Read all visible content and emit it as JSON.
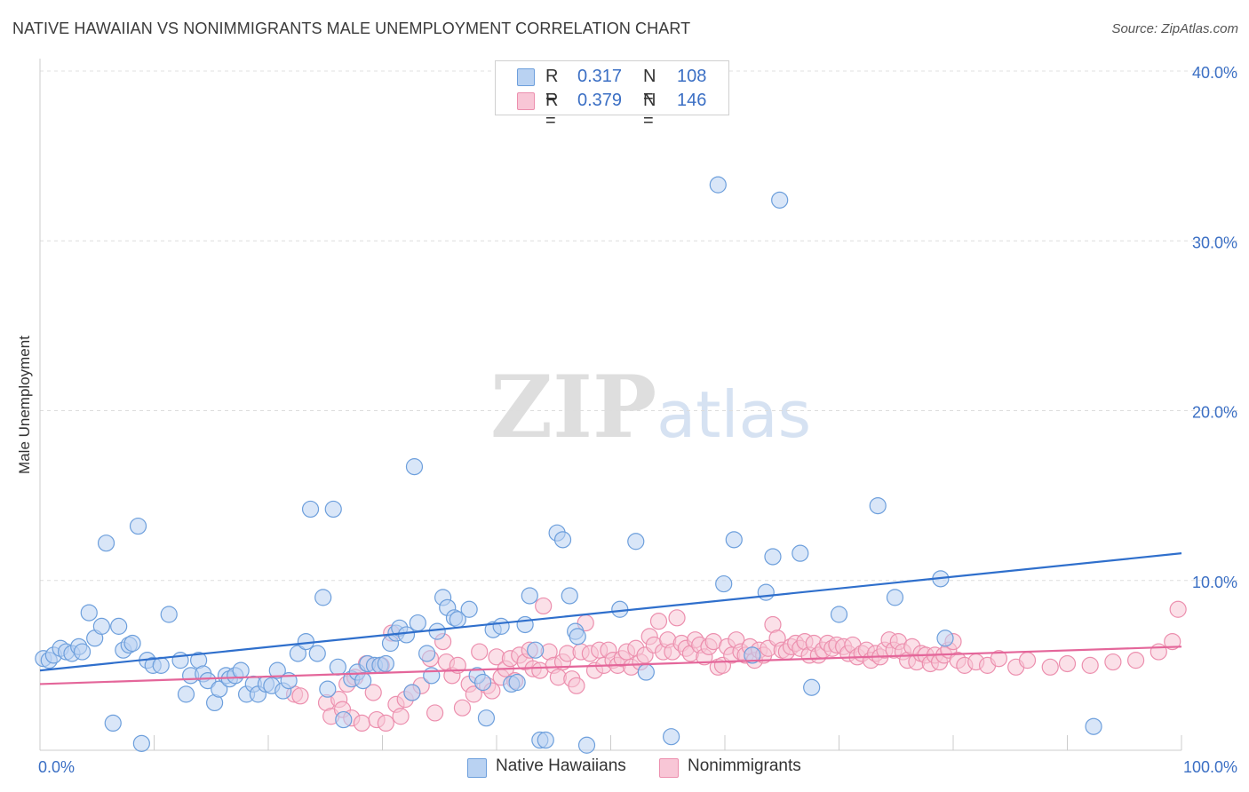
{
  "title": "NATIVE HAWAIIAN VS NONIMMIGRANTS MALE UNEMPLOYMENT CORRELATION CHART",
  "source": "Source: ZipAtlas.com",
  "watermark": {
    "zip": "ZIP",
    "atlas": "atlas"
  },
  "legend_top": [
    {
      "r_label": "R =",
      "r_value": "0.317",
      "n_label": "N =",
      "n_value": "108"
    },
    {
      "r_label": "R =",
      "r_value": "0.379",
      "n_label": "N =",
      "n_value": "146"
    }
  ],
  "legend_bottom": [
    "Native Hawaiians",
    "Nonimmigrants"
  ],
  "chart_data": {
    "type": "scatter",
    "ylabel": "Male Unemployment",
    "xlim": [
      0,
      100
    ],
    "ylim": [
      0,
      40
    ],
    "x_tick_labels": [
      {
        "value": 0,
        "label": "0.0%"
      },
      {
        "value": 100,
        "label": "100.0%"
      }
    ],
    "y_tick_labels": [
      {
        "value": 10,
        "label": "10.0%"
      },
      {
        "value": 20,
        "label": "20.0%"
      },
      {
        "value": 30,
        "label": "30.0%"
      },
      {
        "value": 40,
        "label": "40.0%"
      }
    ],
    "grid": true,
    "colors": {
      "native_fill": "#b9d2f2",
      "native_stroke": "#6d9fdc",
      "native_line": "#2f6fcc",
      "nonimm_fill": "#f8c6d6",
      "nonimm_stroke": "#ec8fae",
      "nonimm_line": "#e4669a"
    },
    "series": [
      {
        "name": "Native Hawaiians",
        "trend": {
          "x": [
            0,
            100
          ],
          "y": [
            4.7,
            11.6
          ]
        },
        "points": [
          [
            0.3,
            5.4
          ],
          [
            0.8,
            5.3
          ],
          [
            1.2,
            5.6
          ],
          [
            1.8,
            6.0
          ],
          [
            2.3,
            5.8
          ],
          [
            2.8,
            5.7
          ],
          [
            3.4,
            6.1
          ],
          [
            3.7,
            5.8
          ],
          [
            4.3,
            8.1
          ],
          [
            4.8,
            6.6
          ],
          [
            5.4,
            7.3
          ],
          [
            5.8,
            12.2
          ],
          [
            6.4,
            1.6
          ],
          [
            6.9,
            7.3
          ],
          [
            7.3,
            5.9
          ],
          [
            7.8,
            6.2
          ],
          [
            8.1,
            6.3
          ],
          [
            8.6,
            13.2
          ],
          [
            8.9,
            0.4
          ],
          [
            9.4,
            5.3
          ],
          [
            9.9,
            5.0
          ],
          [
            10.6,
            5.0
          ],
          [
            11.3,
            8.0
          ],
          [
            12.3,
            5.3
          ],
          [
            12.8,
            3.3
          ],
          [
            13.2,
            4.4
          ],
          [
            13.9,
            5.3
          ],
          [
            14.3,
            4.5
          ],
          [
            14.7,
            4.1
          ],
          [
            15.3,
            2.8
          ],
          [
            15.7,
            3.6
          ],
          [
            16.3,
            4.4
          ],
          [
            16.6,
            4.2
          ],
          [
            17.1,
            4.4
          ],
          [
            17.6,
            4.7
          ],
          [
            18.1,
            3.3
          ],
          [
            18.7,
            3.9
          ],
          [
            19.1,
            3.3
          ],
          [
            19.8,
            3.9
          ],
          [
            20.3,
            3.8
          ],
          [
            20.8,
            4.7
          ],
          [
            21.3,
            3.5
          ],
          [
            21.8,
            4.1
          ],
          [
            22.6,
            5.7
          ],
          [
            23.3,
            6.4
          ],
          [
            23.7,
            14.2
          ],
          [
            24.3,
            5.7
          ],
          [
            24.8,
            9.0
          ],
          [
            25.2,
            3.6
          ],
          [
            25.7,
            14.2
          ],
          [
            26.1,
            4.9
          ],
          [
            26.6,
            1.8
          ],
          [
            27.3,
            4.2
          ],
          [
            27.8,
            4.6
          ],
          [
            28.3,
            4.1
          ],
          [
            28.7,
            5.1
          ],
          [
            29.3,
            5.0
          ],
          [
            29.8,
            5.0
          ],
          [
            30.3,
            5.1
          ],
          [
            30.7,
            6.3
          ],
          [
            31.2,
            6.9
          ],
          [
            31.5,
            7.2
          ],
          [
            32.1,
            6.8
          ],
          [
            32.6,
            3.4
          ],
          [
            32.8,
            16.7
          ],
          [
            33.1,
            7.5
          ],
          [
            33.9,
            5.7
          ],
          [
            34.3,
            4.4
          ],
          [
            34.8,
            7.0
          ],
          [
            35.3,
            9.0
          ],
          [
            35.7,
            8.4
          ],
          [
            36.3,
            7.8
          ],
          [
            36.6,
            7.7
          ],
          [
            37.6,
            8.3
          ],
          [
            38.3,
            4.4
          ],
          [
            38.8,
            4.0
          ],
          [
            39.1,
            1.9
          ],
          [
            39.7,
            7.1
          ],
          [
            40.4,
            7.3
          ],
          [
            41.3,
            3.9
          ],
          [
            41.8,
            4.0
          ],
          [
            42.5,
            7.4
          ],
          [
            42.9,
            9.1
          ],
          [
            43.4,
            5.9
          ],
          [
            43.8,
            0.6
          ],
          [
            44.3,
            0.6
          ],
          [
            45.3,
            12.8
          ],
          [
            45.8,
            12.4
          ],
          [
            46.4,
            9.1
          ],
          [
            46.9,
            7.0
          ],
          [
            47.1,
            6.7
          ],
          [
            47.9,
            0.3
          ],
          [
            50.8,
            8.3
          ],
          [
            52.2,
            12.3
          ],
          [
            53.1,
            4.6
          ],
          [
            55.3,
            0.8
          ],
          [
            59.4,
            33.3
          ],
          [
            59.9,
            9.8
          ],
          [
            60.8,
            12.4
          ],
          [
            62.4,
            5.6
          ],
          [
            63.6,
            9.3
          ],
          [
            64.2,
            11.4
          ],
          [
            64.8,
            32.4
          ],
          [
            66.6,
            11.6
          ],
          [
            67.6,
            3.7
          ],
          [
            70.0,
            8.0
          ],
          [
            73.4,
            14.4
          ],
          [
            74.9,
            9.0
          ],
          [
            78.9,
            10.1
          ],
          [
            79.3,
            6.6
          ],
          [
            92.3,
            1.4
          ]
        ]
      },
      {
        "name": "Nonimmigrants",
        "trend": {
          "x": [
            0,
            100
          ],
          "y": [
            3.9,
            6.1
          ]
        },
        "points": [
          [
            22.3,
            3.3
          ],
          [
            22.8,
            3.2
          ],
          [
            25.1,
            2.8
          ],
          [
            25.5,
            2.0
          ],
          [
            26.2,
            3.0
          ],
          [
            26.5,
            2.4
          ],
          [
            26.9,
            3.9
          ],
          [
            27.3,
            1.9
          ],
          [
            27.6,
            4.3
          ],
          [
            28.2,
            1.6
          ],
          [
            28.6,
            5.1
          ],
          [
            29.2,
            3.4
          ],
          [
            29.5,
            1.8
          ],
          [
            29.9,
            5.0
          ],
          [
            30.3,
            1.6
          ],
          [
            30.8,
            6.9
          ],
          [
            31.2,
            2.7
          ],
          [
            31.6,
            2.0
          ],
          [
            32.0,
            3.0
          ],
          [
            32.6,
            3.4
          ],
          [
            33.4,
            3.8
          ],
          [
            34.2,
            5.4
          ],
          [
            34.6,
            2.2
          ],
          [
            35.3,
            6.4
          ],
          [
            35.6,
            5.2
          ],
          [
            36.1,
            4.4
          ],
          [
            36.6,
            5.0
          ],
          [
            37.0,
            2.5
          ],
          [
            37.6,
            3.9
          ],
          [
            38.0,
            3.3
          ],
          [
            38.5,
            5.8
          ],
          [
            39.2,
            3.8
          ],
          [
            39.6,
            3.5
          ],
          [
            40.0,
            5.5
          ],
          [
            40.4,
            4.3
          ],
          [
            40.8,
            4.8
          ],
          [
            41.2,
            5.4
          ],
          [
            41.6,
            4.1
          ],
          [
            42.0,
            5.6
          ],
          [
            42.5,
            5.2
          ],
          [
            42.9,
            5.9
          ],
          [
            43.2,
            4.8
          ],
          [
            43.8,
            4.7
          ],
          [
            44.1,
            8.5
          ],
          [
            44.6,
            5.8
          ],
          [
            45.0,
            5.0
          ],
          [
            45.4,
            4.3
          ],
          [
            45.8,
            5.2
          ],
          [
            46.2,
            5.7
          ],
          [
            46.6,
            4.2
          ],
          [
            47.0,
            3.8
          ],
          [
            47.4,
            5.8
          ],
          [
            47.8,
            7.5
          ],
          [
            48.2,
            5.7
          ],
          [
            48.6,
            4.7
          ],
          [
            49.0,
            5.9
          ],
          [
            49.4,
            5.0
          ],
          [
            49.8,
            5.9
          ],
          [
            50.2,
            5.3
          ],
          [
            50.6,
            5.0
          ],
          [
            51.0,
            5.4
          ],
          [
            51.4,
            5.8
          ],
          [
            51.8,
            4.9
          ],
          [
            52.2,
            6.0
          ],
          [
            52.6,
            5.2
          ],
          [
            53.0,
            5.6
          ],
          [
            53.4,
            6.7
          ],
          [
            53.8,
            6.2
          ],
          [
            54.2,
            7.6
          ],
          [
            54.6,
            5.8
          ],
          [
            55.0,
            6.5
          ],
          [
            55.4,
            5.8
          ],
          [
            55.8,
            7.8
          ],
          [
            56.2,
            6.3
          ],
          [
            56.6,
            6.0
          ],
          [
            57.0,
            5.7
          ],
          [
            57.4,
            6.5
          ],
          [
            57.8,
            6.2
          ],
          [
            58.2,
            5.5
          ],
          [
            58.6,
            6.1
          ],
          [
            59.0,
            6.4
          ],
          [
            59.4,
            4.9
          ],
          [
            59.8,
            5.0
          ],
          [
            60.2,
            6.1
          ],
          [
            60.6,
            5.6
          ],
          [
            61.0,
            6.5
          ],
          [
            61.4,
            5.8
          ],
          [
            61.8,
            5.6
          ],
          [
            62.2,
            6.1
          ],
          [
            62.6,
            5.3
          ],
          [
            63.0,
            5.9
          ],
          [
            63.4,
            5.6
          ],
          [
            63.8,
            6.0
          ],
          [
            64.2,
            7.4
          ],
          [
            64.6,
            6.6
          ],
          [
            65.0,
            5.9
          ],
          [
            65.4,
            5.8
          ],
          [
            65.8,
            6.1
          ],
          [
            66.2,
            6.3
          ],
          [
            66.6,
            6.0
          ],
          [
            67.0,
            6.4
          ],
          [
            67.4,
            5.6
          ],
          [
            67.8,
            6.3
          ],
          [
            68.2,
            5.6
          ],
          [
            68.6,
            5.9
          ],
          [
            69.0,
            6.3
          ],
          [
            69.4,
            6.0
          ],
          [
            69.8,
            6.2
          ],
          [
            70.4,
            6.1
          ],
          [
            70.8,
            5.7
          ],
          [
            71.2,
            6.2
          ],
          [
            71.6,
            5.5
          ],
          [
            72.0,
            5.7
          ],
          [
            72.4,
            5.9
          ],
          [
            72.8,
            5.3
          ],
          [
            73.2,
            5.7
          ],
          [
            73.6,
            5.5
          ],
          [
            74.0,
            5.9
          ],
          [
            74.4,
            6.5
          ],
          [
            74.8,
            5.9
          ],
          [
            75.2,
            6.4
          ],
          [
            75.6,
            5.8
          ],
          [
            76.0,
            5.3
          ],
          [
            76.4,
            6.1
          ],
          [
            76.8,
            5.2
          ],
          [
            77.2,
            5.7
          ],
          [
            77.6,
            5.6
          ],
          [
            78.0,
            5.1
          ],
          [
            78.4,
            5.6
          ],
          [
            78.8,
            5.2
          ],
          [
            79.2,
            5.6
          ],
          [
            79.6,
            5.9
          ],
          [
            80.0,
            6.4
          ],
          [
            80.4,
            5.3
          ],
          [
            81.0,
            5.0
          ],
          [
            82.0,
            5.2
          ],
          [
            83.0,
            5.0
          ],
          [
            84.0,
            5.4
          ],
          [
            85.5,
            4.9
          ],
          [
            86.5,
            5.3
          ],
          [
            88.5,
            4.9
          ],
          [
            90.0,
            5.1
          ],
          [
            92.0,
            5.0
          ],
          [
            94.0,
            5.2
          ],
          [
            96.0,
            5.3
          ],
          [
            98.0,
            5.8
          ],
          [
            99.2,
            6.4
          ],
          [
            99.7,
            8.3
          ]
        ]
      }
    ]
  }
}
